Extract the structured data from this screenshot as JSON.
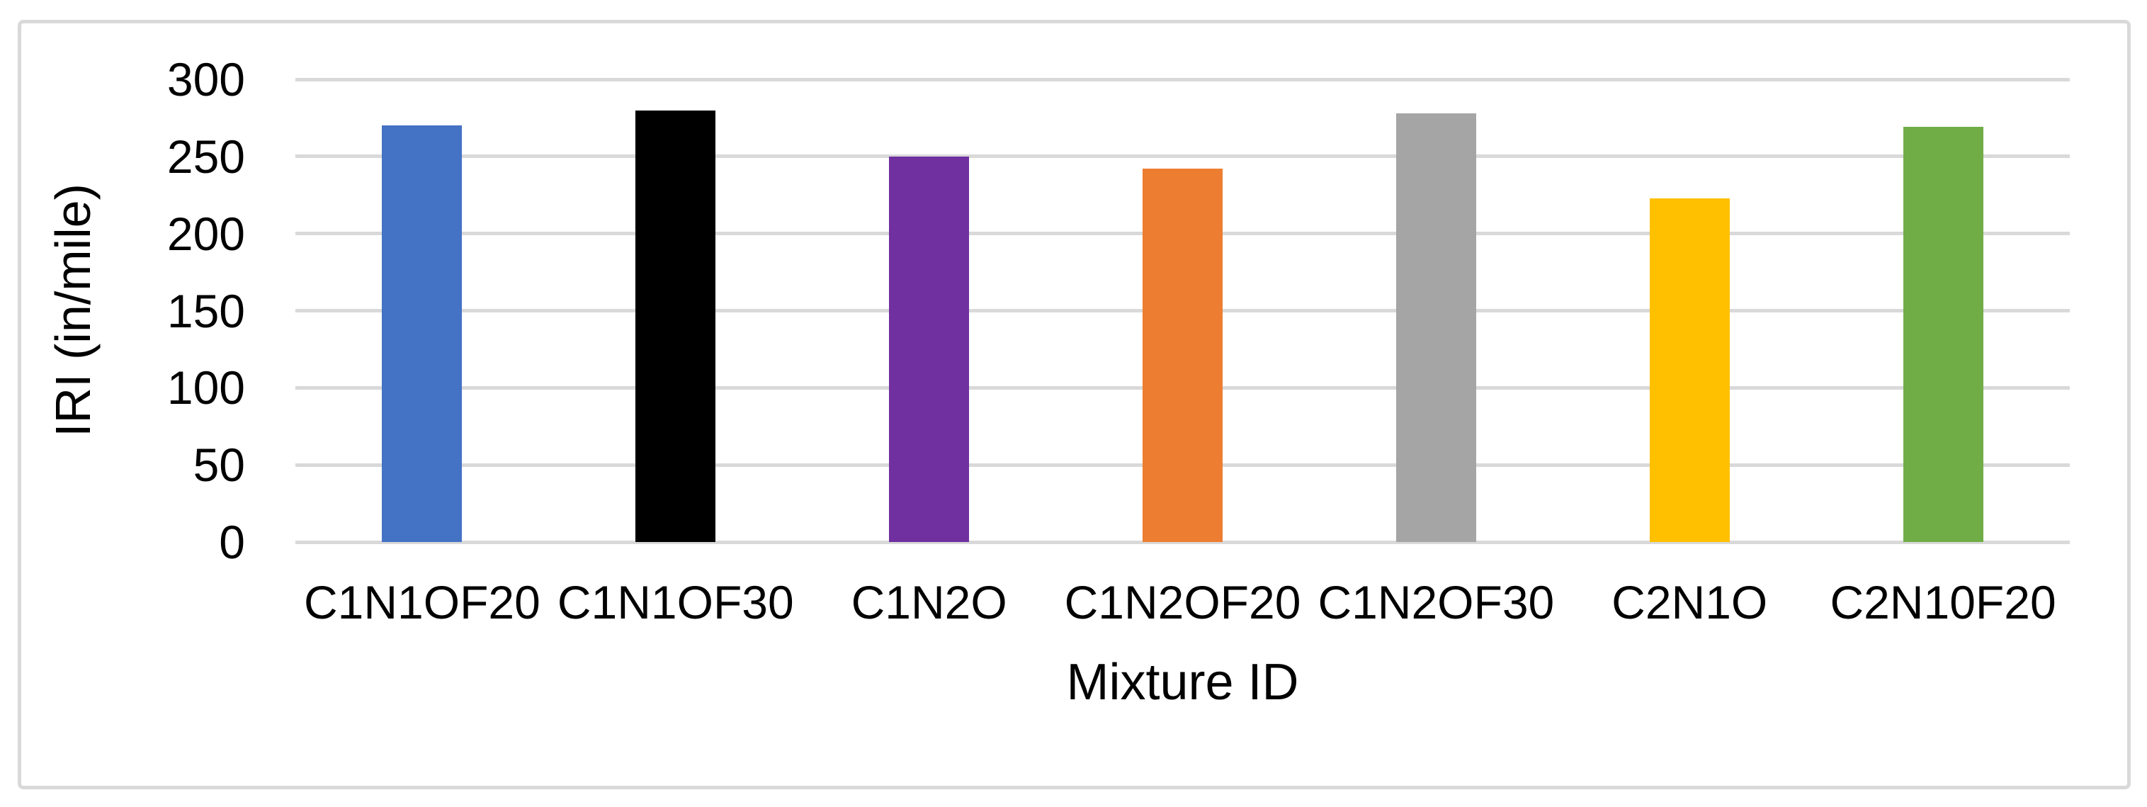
{
  "figure": {
    "background": "#FFFFFF",
    "border_color": "#D9D9D9"
  },
  "chart_data": {
    "type": "bar",
    "title": "",
    "xlabel": "Mixture ID",
    "ylabel": "IRI (in/mile)",
    "categories": [
      "C1N1OF20",
      "C1N1OF30",
      "C1N2O",
      "C1N2OF20",
      "C1N2OF30",
      "C2N1O",
      "C2N10F20"
    ],
    "values": [
      270,
      280,
      250,
      242,
      278,
      223,
      269
    ],
    "bar_colors": [
      "#4472C4",
      "#000000",
      "#7030A0",
      "#ED7D31",
      "#A5A5A5",
      "#FFC000",
      "#70AD47"
    ],
    "ylim": [
      0,
      300
    ],
    "yticks": [
      0,
      50,
      100,
      150,
      200,
      250,
      300
    ],
    "grid": "horizontal",
    "gridline_color": "#D9D9D9",
    "legend": "none",
    "text_color": "#000000"
  }
}
